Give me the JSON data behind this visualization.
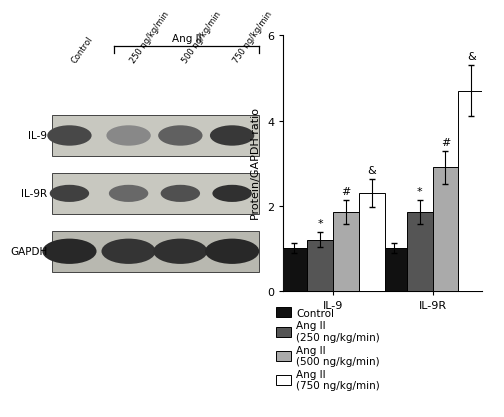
{
  "bar_groups": [
    "IL-9",
    "IL-9R"
  ],
  "legend_labels": [
    "Control",
    "Ang II\n(250 ng/kg/min)",
    "Ang II\n(500 ng/kg/min)",
    "Ang II\n(750 ng/kg/min)"
  ],
  "bar_colors": [
    "#111111",
    "#555555",
    "#aaaaaa",
    "#ffffff"
  ],
  "bar_edgecolors": [
    "#000000",
    "#000000",
    "#000000",
    "#000000"
  ],
  "IL9_values": [
    1.0,
    1.2,
    1.85,
    2.3
  ],
  "IL9R_values": [
    1.0,
    1.85,
    2.9,
    4.7
  ],
  "IL9_errors": [
    0.12,
    0.18,
    0.28,
    0.32
  ],
  "IL9R_errors": [
    0.12,
    0.28,
    0.38,
    0.6
  ],
  "IL9_annotations": [
    "",
    "*",
    "#",
    "&"
  ],
  "IL9R_annotations": [
    "",
    "*",
    "#",
    "&"
  ],
  "ylabel": "Protein/GAPDH ratio",
  "ylim": [
    0,
    6
  ],
  "yticks": [
    0,
    2,
    4,
    6
  ],
  "bar_width": 0.13,
  "background_color": "#ffffff",
  "annotation_fontsize": 8,
  "tick_fontsize": 8,
  "label_fontsize": 8,
  "legend_fontsize": 7.5,
  "wb_row_labels": [
    "IL-9",
    "IL-9R",
    "GAPDH"
  ],
  "wb_col_labels": [
    "Control",
    "250 ng/kg/min",
    "500 ng/kg/min",
    "750 ng/kg/min"
  ],
  "wb_bg_colors": [
    "#c8c8c0",
    "#c8c8c0",
    "#b8b8b0"
  ],
  "wb_band_colors_il9": [
    "#484848",
    "#888888",
    "#606060",
    "#383838"
  ],
  "wb_band_colors_il9r": [
    "#404040",
    "#686868",
    "#505050",
    "#303030"
  ],
  "wb_band_colors_gapdh": [
    "#282828",
    "#343434",
    "#303030",
    "#282828"
  ]
}
